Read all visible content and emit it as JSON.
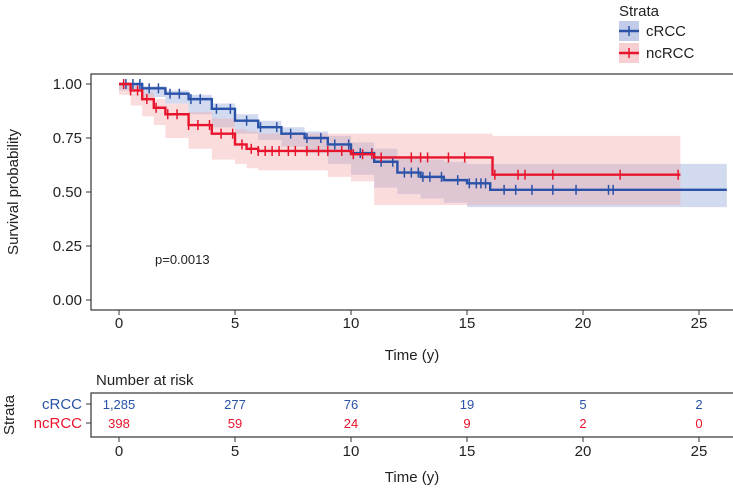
{
  "chart_data": {
    "type": "line",
    "subtype": "kaplan-meier",
    "xlabel": "Time (y)",
    "ylabel": "Survival probability",
    "xlim": [
      -1.2,
      26.2
    ],
    "ylim": [
      -0.04,
      1.04
    ],
    "xticks": [
      "0",
      "5",
      "10",
      "15",
      "20",
      "25"
    ],
    "yticks": [
      "0.00",
      "0.25",
      "0.50",
      "0.75",
      "1.00"
    ],
    "annotation": "p=0.0013",
    "legend": {
      "title": "Strata",
      "position": "top-right"
    },
    "series": [
      {
        "name": "cRCC",
        "color": "#2a52a8",
        "fill": "#8fa3d6",
        "x": [
          0,
          1,
          2,
          3,
          4,
          5,
          6,
          7,
          8,
          9,
          10,
          11,
          12,
          13,
          14,
          15,
          16,
          26.2
        ],
        "y": [
          1,
          0.98,
          0.955,
          0.93,
          0.885,
          0.83,
          0.8,
          0.77,
          0.75,
          0.72,
          0.68,
          0.64,
          0.59,
          0.57,
          0.555,
          0.54,
          0.51,
          0.51
        ],
        "lower": [
          1,
          0.97,
          0.94,
          0.91,
          0.86,
          0.8,
          0.77,
          0.74,
          0.71,
          0.68,
          0.63,
          0.58,
          0.52,
          0.49,
          0.47,
          0.45,
          0.43,
          0.43
        ],
        "upper": [
          1,
          0.99,
          0.97,
          0.95,
          0.91,
          0.86,
          0.83,
          0.8,
          0.78,
          0.76,
          0.73,
          0.7,
          0.66,
          0.65,
          0.64,
          0.63,
          0.63,
          0.63
        ],
        "censor": [
          0.3,
          0.6,
          0.9,
          1.3,
          1.7,
          2.2,
          2.6,
          3.1,
          3.5,
          4.2,
          4.8,
          5.5,
          6.1,
          6.8,
          7.4,
          8.1,
          8.7,
          9.3,
          9.9,
          10.4,
          10.9,
          11.3,
          11.8,
          12.3,
          12.6,
          12.9,
          13.1,
          13.4,
          13.9,
          14.6,
          15.1,
          15.4,
          15.6,
          15.8,
          16.6,
          17.1,
          17.8,
          18.7,
          19.7,
          21.1,
          21.3
        ]
      },
      {
        "name": "ncRCC",
        "color": "#e8142c",
        "fill": "#f2a7a9",
        "x": [
          0,
          0.5,
          1,
          1.5,
          2,
          3,
          4,
          5,
          5.5,
          6,
          9,
          10,
          11,
          16.1,
          24.2
        ],
        "y": [
          1,
          0.97,
          0.93,
          0.89,
          0.86,
          0.81,
          0.77,
          0.72,
          0.7,
          0.69,
          0.69,
          0.675,
          0.66,
          0.58,
          0.58
        ],
        "lower": [
          1,
          0.95,
          0.9,
          0.85,
          0.81,
          0.75,
          0.7,
          0.65,
          0.63,
          0.61,
          0.6,
          0.57,
          0.55,
          0.44,
          0.44
        ],
        "upper": [
          1,
          0.99,
          0.96,
          0.93,
          0.91,
          0.87,
          0.84,
          0.79,
          0.78,
          0.77,
          0.77,
          0.77,
          0.77,
          0.76,
          0.76
        ],
        "censor": [
          0.2,
          0.5,
          0.8,
          1.2,
          1.6,
          2.1,
          2.5,
          3.0,
          3.4,
          3.9,
          4.4,
          4.9,
          5.3,
          5.7,
          6.0,
          6.3,
          6.6,
          6.9,
          7.3,
          7.6,
          8.1,
          8.6,
          9.0,
          9.6,
          10.1,
          10.5,
          10.9,
          11.3,
          12.6,
          13.0,
          13.3,
          14.2,
          14.9,
          16.2,
          17.2,
          17.5,
          18.7,
          21.6,
          24.1
        ]
      }
    ],
    "risk_table": {
      "title": "Number at risk",
      "ylabel": "Strata",
      "xlabel": "Time (y)",
      "times": [
        "0",
        "5",
        "10",
        "15",
        "20",
        "25"
      ],
      "rows": [
        {
          "name": "cRCC",
          "color": "#2a52a8",
          "values": [
            "1,285",
            "277",
            "76",
            "19",
            "5",
            "2"
          ]
        },
        {
          "name": "ncRCC",
          "color": "#e8142c",
          "values": [
            "398",
            "59",
            "24",
            "9",
            "2",
            "0"
          ]
        }
      ]
    }
  }
}
